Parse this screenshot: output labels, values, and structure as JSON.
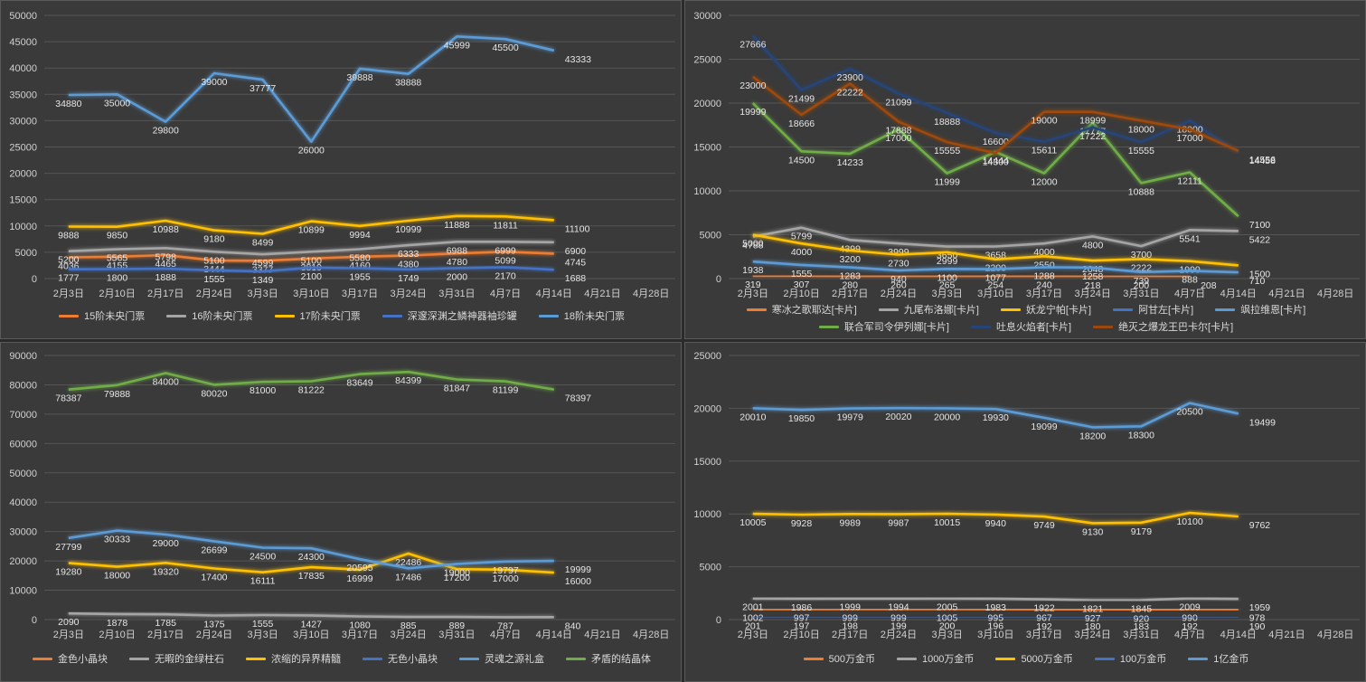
{
  "chart_data": [
    {
      "type": "line",
      "categories": [
        "2月3日",
        "2月10日",
        "2月17日",
        "2月24日",
        "3月3日",
        "3月10日",
        "3月17日",
        "3月24日",
        "3月31日",
        "4月7日",
        "4月14日",
        "4月21日",
        "4月28日"
      ],
      "ylim": [
        0,
        50000
      ],
      "ytick_step": 5000,
      "grid": true,
      "legend": "bottom",
      "series": [
        {
          "name": "15阶未央门票",
          "color": "#ed7d31",
          "values": [
            4036,
            4155,
            4465,
            3444,
            3377,
            3819,
            4160,
            4380,
            4780,
            5099,
            4745,
            null,
            null
          ]
        },
        {
          "name": "16阶未央门票",
          "color": "#a5a5a5",
          "values": [
            5200,
            5565,
            5798,
            5100,
            4599,
            5100,
            5580,
            6333,
            6988,
            6999,
            6900,
            null,
            null
          ]
        },
        {
          "name": "17阶未央门票",
          "color": "#ffc000",
          "values": [
            9888,
            9850,
            10988,
            9180,
            8499,
            10899,
            9994,
            10999,
            11888,
            11811,
            11100,
            null,
            null
          ]
        },
        {
          "name": "深邃深渊之鳞神器袖珍罐",
          "color": "#4472c4",
          "values": [
            1777,
            1800,
            1888,
            1555,
            1349,
            2100,
            1955,
            1749,
            2000,
            2170,
            1688,
            null,
            null
          ]
        },
        {
          "name": "18阶未央门票",
          "color": "#5b9bd5",
          "values": [
            34880,
            35000,
            29800,
            39000,
            37777,
            26000,
            39888,
            38888,
            45999,
            45500,
            43333,
            null,
            null
          ]
        }
      ]
    },
    {
      "type": "line",
      "categories": [
        "2月3日",
        "2月10日",
        "2月17日",
        "2月24日",
        "3月3日",
        "3月10日",
        "3月17日",
        "3月24日",
        "3月31日",
        "4月7日",
        "4月14日",
        "4月21日",
        "4月28日"
      ],
      "ylim": [
        0,
        30000
      ],
      "ytick_step": 5000,
      "grid": true,
      "legend": "bottom",
      "series": [
        {
          "name": "寒冰之歌耶达[卡片]",
          "color": "#ed7d31",
          "values": [
            319,
            307,
            280,
            260,
            265,
            254,
            240,
            218,
            200,
            208,
            null,
            null,
            null
          ]
        },
        {
          "name": "九尾布洛娜[卡片]",
          "color": "#a5a5a5",
          "values": [
            4788,
            5799,
            4399,
            3999,
            3650,
            3658,
            4000,
            4800,
            3700,
            5541,
            5422,
            null,
            null
          ]
        },
        {
          "name": "妖龙宁帕[卡片]",
          "color": "#ffc000",
          "values": [
            5000,
            4000,
            3200,
            2730,
            2999,
            2200,
            2550,
            2048,
            2222,
            1990,
            1500,
            null,
            null
          ]
        },
        {
          "name": "阿甘左[卡片]",
          "color": "#4472c4",
          "values": [
            null,
            null,
            null,
            null,
            null,
            null,
            null,
            null,
            null,
            null,
            null,
            null,
            null
          ]
        },
        {
          "name": "飒拉维恩[卡片]",
          "color": "#5b9bd5",
          "values": [
            1938,
            1555,
            1283,
            940,
            1100,
            1077,
            1288,
            1258,
            739,
            888,
            710,
            null,
            null
          ]
        },
        {
          "name": "联合军司令伊列娜[卡片]",
          "color": "#70ad47",
          "values": [
            19999,
            14500,
            14233,
            17000,
            11999,
            14444,
            12000,
            17777,
            10888,
            12111,
            7100,
            null,
            null
          ]
        },
        {
          "name": "吐息火焰者[卡片]",
          "color": "#264478",
          "values": [
            27666,
            21499,
            23900,
            21099,
            18888,
            16600,
            15611,
            17222,
            15555,
            18000,
            14458,
            null,
            null
          ]
        },
        {
          "name": "绝灭之爆龙王巴卡尔[卡片]",
          "color": "#9e480e",
          "values": [
            23000,
            18666,
            22222,
            17888,
            15555,
            14300,
            19000,
            18999,
            18000,
            17000,
            14556,
            null,
            null
          ]
        }
      ]
    },
    {
      "type": "line",
      "categories": [
        "2月3日",
        "2月10日",
        "2月17日",
        "2月24日",
        "3月3日",
        "3月10日",
        "3月17日",
        "3月24日",
        "3月31日",
        "4月7日",
        "4月14日",
        "4月21日",
        "4月28日"
      ],
      "ylim": [
        0,
        90000
      ],
      "ytick_step": 10000,
      "grid": true,
      "legend": "bottom",
      "series": [
        {
          "name": "金色小晶块",
          "color": "#ed7d31",
          "values": [
            null,
            null,
            null,
            null,
            null,
            null,
            null,
            null,
            null,
            null,
            null,
            null,
            null
          ]
        },
        {
          "name": "无暇的金绿柱石",
          "color": "#a5a5a5",
          "values": [
            2090,
            1878,
            1785,
            1375,
            1555,
            1427,
            1080,
            885,
            889,
            787,
            840,
            null,
            null
          ]
        },
        {
          "name": "浓缩的异界精髓",
          "color": "#ffc000",
          "values": [
            19280,
            18000,
            19320,
            17400,
            16111,
            17835,
            16999,
            22486,
            17200,
            17000,
            16000,
            null,
            null
          ]
        },
        {
          "name": "无色小晶块",
          "color": "#4472c4",
          "values": [
            null,
            null,
            null,
            null,
            null,
            null,
            null,
            null,
            null,
            null,
            null,
            null,
            null
          ]
        },
        {
          "name": "灵魂之源礼盒",
          "color": "#5b9bd5",
          "values": [
            27799,
            30333,
            29000,
            26699,
            24500,
            24300,
            20595,
            17486,
            19000,
            19797,
            19999,
            null,
            null
          ]
        },
        {
          "name": "矛盾的结晶体",
          "color": "#70ad47",
          "values": [
            78387,
            79888,
            84000,
            80020,
            81000,
            81222,
            83649,
            84399,
            81847,
            81199,
            78397,
            null,
            null
          ]
        }
      ]
    },
    {
      "type": "line",
      "categories": [
        "2月3日",
        "2月10日",
        "2月17日",
        "2月24日",
        "3月3日",
        "3月10日",
        "3月17日",
        "3月24日",
        "3月31日",
        "4月7日",
        "4月14日",
        "4月21日",
        "4月28日"
      ],
      "ylim": [
        0,
        25000
      ],
      "ytick_step": 5000,
      "grid": true,
      "legend": "bottom",
      "series": [
        {
          "name": "500万金币",
          "color": "#ed7d31",
          "values": [
            1002,
            997,
            999,
            999,
            1005,
            995,
            967,
            927,
            920,
            990,
            978,
            null,
            null
          ]
        },
        {
          "name": "1000万金币",
          "color": "#a5a5a5",
          "values": [
            2001,
            1986,
            1999,
            1994,
            2005,
            1983,
            1922,
            1821,
            1845,
            2009,
            1959,
            null,
            null
          ]
        },
        {
          "name": "5000万金币",
          "color": "#ffc000",
          "values": [
            10005,
            9928,
            9989,
            9987,
            10015,
            9940,
            9749,
            9130,
            9179,
            10100,
            9762,
            null,
            null
          ]
        },
        {
          "name": "100万金币",
          "color": "#4472c4",
          "values": [
            201,
            197,
            198,
            199,
            200,
            196,
            192,
            180,
            183,
            192,
            190,
            null,
            null
          ]
        },
        {
          "name": "1亿金币",
          "color": "#5b9bd5",
          "values": [
            20010,
            19850,
            19979,
            20020,
            20000,
            19930,
            19099,
            18200,
            18300,
            20500,
            19499,
            null,
            null
          ]
        }
      ]
    }
  ]
}
